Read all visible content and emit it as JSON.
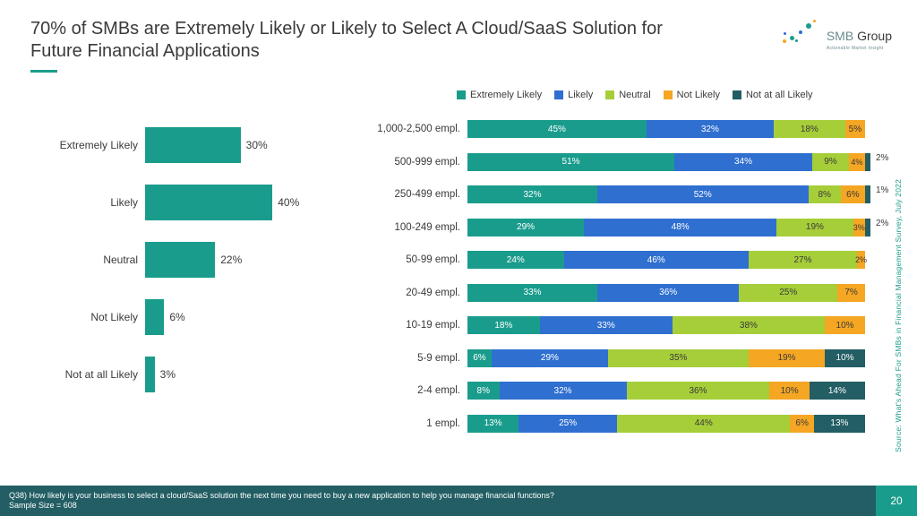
{
  "title": "70% of SMBs are Extremely Likely or Likely to Select A Cloud/SaaS Solution for Future Financial Applications",
  "logo": {
    "brand": "SMB",
    "brand2": "Group",
    "tagline": "Actionable Market Insight"
  },
  "colors": {
    "extremely_likely": "#1a9c8c",
    "likely": "#2f6fd0",
    "neutral": "#a6ce39",
    "not_likely": "#f5a623",
    "not_at_all": "#225e64",
    "title_color": "#3a3a3a",
    "bg": "#ffffff",
    "footer_bg": "#225e64",
    "footer_accent": "#1a9c8c",
    "underline": "#1a9c8c"
  },
  "legend": [
    {
      "label": "Extremely Likely",
      "color_key": "extremely_likely"
    },
    {
      "label": "Likely",
      "color_key": "likely"
    },
    {
      "label": "Neutral",
      "color_key": "neutral"
    },
    {
      "label": "Not Likely",
      "color_key": "not_likely"
    },
    {
      "label": "Not at all Likely",
      "color_key": "not_at_all"
    }
  ],
  "left_chart": {
    "type": "bar",
    "max": 45,
    "bar_color": "#1a9c8c",
    "rows": [
      {
        "label": "Extremely Likely",
        "value": 30
      },
      {
        "label": "Likely",
        "value": 40
      },
      {
        "label": "Neutral",
        "value": 22
      },
      {
        "label": "Not Likely",
        "value": 6
      },
      {
        "label": "Not at all Likely",
        "value": 3
      }
    ]
  },
  "right_chart": {
    "type": "stacked_bar",
    "rows": [
      {
        "label": "1,000-2,500 empl.",
        "segs": [
          {
            "v": 45,
            "k": "extremely_likely"
          },
          {
            "v": 32,
            "k": "likely"
          },
          {
            "v": 18,
            "k": "neutral"
          },
          {
            "v": 5,
            "k": "not_likely"
          }
        ]
      },
      {
        "label": "500-999 empl.",
        "segs": [
          {
            "v": 51,
            "k": "extremely_likely"
          },
          {
            "v": 34,
            "k": "likely"
          },
          {
            "v": 9,
            "k": "neutral"
          },
          {
            "v": 4,
            "k": "not_likely"
          },
          {
            "v": 2,
            "k": "not_at_all",
            "out": true
          }
        ]
      },
      {
        "label": "250-499 empl.",
        "segs": [
          {
            "v": 32,
            "k": "extremely_likely"
          },
          {
            "v": 52,
            "k": "likely"
          },
          {
            "v": 8,
            "k": "neutral"
          },
          {
            "v": 6,
            "k": "not_likely"
          },
          {
            "v": 1,
            "k": "not_at_all",
            "out": true
          }
        ]
      },
      {
        "label": "100-249 empl.",
        "segs": [
          {
            "v": 29,
            "k": "extremely_likely"
          },
          {
            "v": 48,
            "k": "likely"
          },
          {
            "v": 19,
            "k": "neutral"
          },
          {
            "v": 3,
            "k": "not_likely"
          },
          {
            "v": 2,
            "k": "not_at_all",
            "out": true
          }
        ]
      },
      {
        "label": "50-99 empl.",
        "segs": [
          {
            "v": 24,
            "k": "extremely_likely"
          },
          {
            "v": 46,
            "k": "likely"
          },
          {
            "v": 27,
            "k": "neutral"
          },
          {
            "v": 2,
            "k": "not_likely"
          }
        ]
      },
      {
        "label": "20-49 empl.",
        "segs": [
          {
            "v": 33,
            "k": "extremely_likely"
          },
          {
            "v": 36,
            "k": "likely"
          },
          {
            "v": 25,
            "k": "neutral"
          },
          {
            "v": 7,
            "k": "not_likely"
          }
        ]
      },
      {
        "label": "10-19 empl.",
        "segs": [
          {
            "v": 18,
            "k": "extremely_likely"
          },
          {
            "v": 33,
            "k": "likely"
          },
          {
            "v": 38,
            "k": "neutral"
          },
          {
            "v": 10,
            "k": "not_likely"
          }
        ]
      },
      {
        "label": "5-9 empl.",
        "segs": [
          {
            "v": 6,
            "k": "extremely_likely"
          },
          {
            "v": 29,
            "k": "likely"
          },
          {
            "v": 35,
            "k": "neutral"
          },
          {
            "v": 19,
            "k": "not_likely"
          },
          {
            "v": 10,
            "k": "not_at_all"
          }
        ]
      },
      {
        "label": "2-4 empl.",
        "segs": [
          {
            "v": 8,
            "k": "extremely_likely"
          },
          {
            "v": 32,
            "k": "likely"
          },
          {
            "v": 36,
            "k": "neutral"
          },
          {
            "v": 10,
            "k": "not_likely"
          },
          {
            "v": 14,
            "k": "not_at_all"
          }
        ]
      },
      {
        "label": "1 empl.",
        "segs": [
          {
            "v": 13,
            "k": "extremely_likely"
          },
          {
            "v": 25,
            "k": "likely"
          },
          {
            "v": 44,
            "k": "neutral"
          },
          {
            "v": 6,
            "k": "not_likely"
          },
          {
            "v": 13,
            "k": "not_at_all"
          }
        ]
      }
    ]
  },
  "footer": {
    "question": "Q38) How likely is your business to select a cloud/SaaS solution the next time you need to buy a new application to help you manage financial functions?",
    "sample": "Sample Size = 608",
    "page": "20"
  },
  "source": "Source: What's Ahead For SMBs in Financial Management Survey, July 2022"
}
